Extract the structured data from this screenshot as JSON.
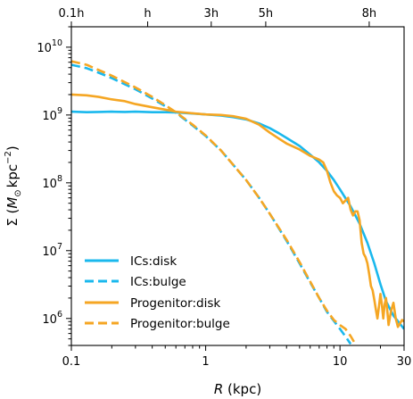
{
  "chart_data": {
    "type": "line",
    "title": "",
    "xlabel": {
      "italic": "R",
      "rest": " (kpc)"
    },
    "ylabel": {
      "main": "Σ (",
      "italic": "M",
      "sub": "⊙",
      "mid": "kpc",
      "sup": "−2",
      "end": ")"
    },
    "xscale": "log",
    "yscale": "log",
    "xlim": [
      0.1,
      30
    ],
    "ylim": [
      400000,
      20000000000
    ],
    "xticks": [
      {
        "value": 0.1,
        "label": "0.1"
      },
      {
        "value": 1,
        "label": "1"
      },
      {
        "value": 10,
        "label": "10"
      },
      {
        "value": 30,
        "label": "30"
      }
    ],
    "yticks": [
      {
        "value": 1000000,
        "base": "10",
        "exp": "6"
      },
      {
        "value": 10000000,
        "base": "10",
        "exp": "7"
      },
      {
        "value": 100000000,
        "base": "10",
        "exp": "8"
      },
      {
        "value": 1000000000,
        "base": "10",
        "exp": "9"
      },
      {
        "value": 10000000000,
        "base": "10",
        "exp": "10"
      }
    ],
    "top_axis_ticks": [
      {
        "value": 0.1,
        "label": "0.1h"
      },
      {
        "value": 0.37,
        "label": "h"
      },
      {
        "value": 1.1,
        "label": "3h"
      },
      {
        "value": 2.8,
        "label": "5h"
      },
      {
        "value": 16.5,
        "label": "8h"
      }
    ],
    "legend_position": "lower-left",
    "grid": false,
    "series": [
      {
        "name": "ICs:disk",
        "color": "#1ab8ed",
        "dash": "solid",
        "points": [
          [
            0.1,
            1120000000.0
          ],
          [
            0.13,
            1100000000.0
          ],
          [
            0.16,
            1110000000.0
          ],
          [
            0.2,
            1120000000.0
          ],
          [
            0.25,
            1110000000.0
          ],
          [
            0.3,
            1120000000.0
          ],
          [
            0.4,
            1100000000.0
          ],
          [
            0.5,
            1100000000.0
          ],
          [
            0.6,
            1090000000.0
          ],
          [
            0.8,
            1050000000.0
          ],
          [
            1.0,
            1020000000.0
          ],
          [
            1.3,
            980000000.0
          ],
          [
            1.6,
            930000000.0
          ],
          [
            2.0,
            860000000.0
          ],
          [
            2.5,
            750000000.0
          ],
          [
            3.0,
            640000000.0
          ],
          [
            3.5,
            540000000.0
          ],
          [
            4.0,
            460000000.0
          ],
          [
            5.0,
            350000000.0
          ],
          [
            6.0,
            260000000.0
          ],
          [
            7.0,
            200000000.0
          ],
          [
            8.0,
            150000000.0
          ],
          [
            9.0,
            110000000.0
          ],
          [
            10.0,
            80000000.0
          ],
          [
            12.0,
            45000000.0
          ],
          [
            14.0,
            25000000.0
          ],
          [
            16.0,
            13000000.0
          ],
          [
            18.0,
            6500000.0
          ],
          [
            20.0,
            3200000.0
          ],
          [
            22.0,
            1800000.0
          ],
          [
            25.0,
            1100000.0
          ],
          [
            30.0,
            700000.0
          ]
        ]
      },
      {
        "name": "ICs:bulge",
        "color": "#1ab8ed",
        "dash": "dashed",
        "points": [
          [
            0.1,
            5500000000.0
          ],
          [
            0.13,
            4900000000.0
          ],
          [
            0.16,
            4200000000.0
          ],
          [
            0.2,
            3500000000.0
          ],
          [
            0.3,
            2400000000.0
          ],
          [
            0.4,
            1750000000.0
          ],
          [
            0.5,
            1350000000.0
          ],
          [
            0.6,
            1080000000.0
          ],
          [
            0.8,
            700000000.0
          ],
          [
            1.0,
            490000000.0
          ],
          [
            1.3,
            300000000.0
          ],
          [
            1.6,
            185000000.0
          ],
          [
            2.0,
            110000000.0
          ],
          [
            2.5,
            60000000.0
          ],
          [
            3.0,
            35000000.0
          ],
          [
            4.0,
            14000000.0
          ],
          [
            5.0,
            6500000.0
          ],
          [
            6.0,
            3400000.0
          ],
          [
            7.0,
            2000000.0
          ],
          [
            8.0,
            1250000.0
          ],
          [
            10.0,
            700000.0
          ],
          [
            11.0,
            540000.0
          ],
          [
            12.0,
            420000.0
          ]
        ]
      },
      {
        "name": "Progenitor:disk",
        "color": "#f5a623",
        "dash": "solid",
        "points": [
          [
            0.1,
            2000000000.0
          ],
          [
            0.13,
            1950000000.0
          ],
          [
            0.16,
            1850000000.0
          ],
          [
            0.2,
            1700000000.0
          ],
          [
            0.25,
            1600000000.0
          ],
          [
            0.3,
            1450000000.0
          ],
          [
            0.4,
            1300000000.0
          ],
          [
            0.5,
            1200000000.0
          ],
          [
            0.6,
            1120000000.0
          ],
          [
            0.8,
            1060000000.0
          ],
          [
            1.0,
            1020000000.0
          ],
          [
            1.3,
            1000000000.0
          ],
          [
            1.6,
            960000000.0
          ],
          [
            2.0,
            880000000.0
          ],
          [
            2.5,
            720000000.0
          ],
          [
            3.0,
            550000000.0
          ],
          [
            3.5,
            450000000.0
          ],
          [
            4.0,
            380000000.0
          ],
          [
            5.0,
            310000000.0
          ],
          [
            6.0,
            250000000.0
          ],
          [
            7.0,
            220000000.0
          ],
          [
            7.5,
            200000000.0
          ],
          [
            8.0,
            150000000.0
          ],
          [
            8.5,
            100000000.0
          ],
          [
            9.0,
            75000000.0
          ],
          [
            9.5,
            65000000.0
          ],
          [
            10.0,
            60000000.0
          ],
          [
            10.5,
            50000000.0
          ],
          [
            11.0,
            55000000.0
          ],
          [
            11.5,
            60000000.0
          ],
          [
            12.0,
            40000000.0
          ],
          [
            12.5,
            33000000.0
          ],
          [
            13.0,
            38000000.0
          ],
          [
            13.5,
            38000000.0
          ],
          [
            14.0,
            28000000.0
          ],
          [
            14.5,
            13000000.0
          ],
          [
            15.0,
            9000000.0
          ],
          [
            15.5,
            8000000.0
          ],
          [
            16.0,
            6500000.0
          ],
          [
            16.5,
            4500000.0
          ],
          [
            17.0,
            3000000.0
          ],
          [
            17.5,
            2600000.0
          ],
          [
            18.0,
            1900000.0
          ],
          [
            18.5,
            1350000.0
          ],
          [
            19.0,
            1000000.0
          ],
          [
            19.5,
            1500000.0
          ],
          [
            20.0,
            2300000.0
          ],
          [
            20.5,
            1600000.0
          ],
          [
            21.0,
            1000000.0
          ],
          [
            21.5,
            1600000.0
          ],
          [
            22.0,
            2000000.0
          ],
          [
            22.5,
            1300000.0
          ],
          [
            23.0,
            800000.0
          ],
          [
            24.0,
            1300000.0
          ],
          [
            25.0,
            1700000.0
          ],
          [
            26.0,
            1000000.0
          ],
          [
            27.0,
            750000.0
          ],
          [
            28.0,
            850000.0
          ],
          [
            29.0,
            950000.0
          ],
          [
            30.0,
            900000.0
          ]
        ]
      },
      {
        "name": "Progenitor:bulge",
        "color": "#f5a623",
        "dash": "dashed",
        "points": [
          [
            0.1,
            6200000000.0
          ],
          [
            0.13,
            5500000000.0
          ],
          [
            0.16,
            4600000000.0
          ],
          [
            0.2,
            3800000000.0
          ],
          [
            0.3,
            2550000000.0
          ],
          [
            0.4,
            1850000000.0
          ],
          [
            0.5,
            1400000000.0
          ],
          [
            0.6,
            1100000000.0
          ],
          [
            0.8,
            720000000.0
          ],
          [
            1.0,
            500000000.0
          ],
          [
            1.3,
            300000000.0
          ],
          [
            1.6,
            185000000.0
          ],
          [
            2.0,
            110000000.0
          ],
          [
            2.5,
            60000000.0
          ],
          [
            3.0,
            35000000.0
          ],
          [
            4.0,
            14500000.0
          ],
          [
            5.0,
            6800000.0
          ],
          [
            6.0,
            3500000.0
          ],
          [
            7.0,
            2000000.0
          ],
          [
            8.0,
            1300000.0
          ],
          [
            9.0,
            950000.0
          ],
          [
            10.0,
            800000.0
          ],
          [
            11.0,
            700000.0
          ],
          [
            12.0,
            550000.0
          ],
          [
            13.0,
            420000.0
          ]
        ]
      }
    ]
  }
}
